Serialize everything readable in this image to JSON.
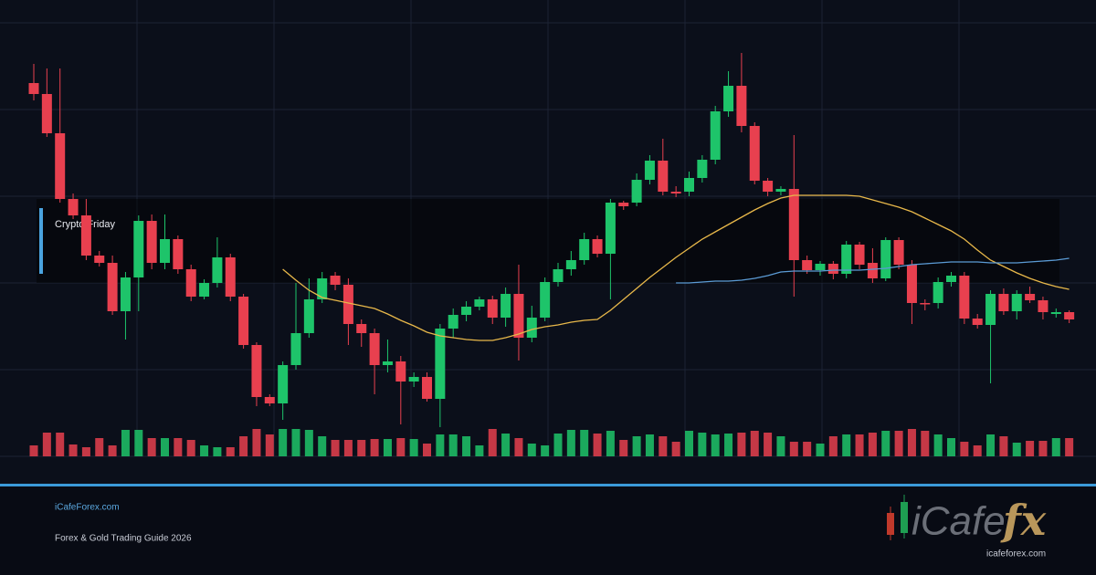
{
  "chart_data": {
    "type": "candlestick",
    "ylim": [
      0,
      475
    ],
    "up_color": "#1ec46a",
    "down_color": "#e8404f",
    "open": [
      409,
      397,
      354,
      282,
      264,
      220,
      212,
      159,
      196,
      258,
      212,
      238,
      205,
      175,
      190,
      218,
      175,
      122,
      65,
      58,
      100,
      135,
      172,
      198,
      188,
      145,
      135,
      100,
      104,
      82,
      87,
      63,
      140,
      155,
      164,
      172,
      152,
      178,
      130,
      152,
      191,
      205,
      215,
      238,
      222,
      278,
      278,
      303,
      324,
      290,
      290,
      305,
      325,
      378,
      406,
      362,
      302,
      290,
      293,
      215,
      204,
      211,
      200,
      232,
      212,
      195,
      237,
      210,
      168,
      168,
      191,
      198,
      151,
      144,
      178,
      159,
      178,
      171,
      156,
      158
    ],
    "high": [
      430,
      425,
      425,
      288,
      282,
      225,
      220,
      202,
      264,
      265,
      265,
      242,
      210,
      194,
      240,
      222,
      178,
      125,
      68,
      104,
      190,
      195,
      202,
      202,
      195,
      150,
      140,
      128,
      110,
      92,
      92,
      145,
      162,
      170,
      175,
      176,
      185,
      210,
      165,
      196,
      212,
      225,
      245,
      242,
      282,
      280,
      310,
      330,
      348,
      296,
      312,
      330,
      384,
      422,
      442,
      366,
      305,
      296,
      352,
      220,
      214,
      214,
      236,
      235,
      228,
      240,
      240,
      215,
      172,
      196,
      202,
      202,
      156,
      182,
      184,
      182,
      186,
      175,
      162,
      160
    ],
    "low": [
      390,
      350,
      278,
      260,
      215,
      208,
      155,
      128,
      159,
      205,
      205,
      200,
      170,
      172,
      185,
      170,
      118,
      55,
      55,
      40,
      95,
      130,
      168,
      182,
      122,
      120,
      68,
      92,
      35,
      76,
      60,
      32,
      130,
      148,
      160,
      145,
      142,
      105,
      125,
      148,
      186,
      198,
      210,
      218,
      172,
      270,
      274,
      298,
      286,
      284,
      285,
      300,
      320,
      372,
      355,
      298,
      285,
      286,
      175,
      200,
      198,
      194,
      195,
      205,
      190,
      192,
      205,
      145,
      160,
      162,
      186,
      145,
      140,
      80,
      155,
      150,
      168,
      150,
      152,
      146
    ],
    "close": [
      397,
      354,
      282,
      264,
      220,
      212,
      159,
      196,
      258,
      212,
      238,
      205,
      175,
      190,
      218,
      175,
      122,
      65,
      58,
      100,
      135,
      172,
      195,
      188,
      145,
      135,
      100,
      104,
      82,
      87,
      63,
      140,
      155,
      164,
      172,
      152,
      178,
      130,
      152,
      191,
      205,
      215,
      238,
      222,
      278,
      274,
      303,
      324,
      290,
      288,
      305,
      325,
      378,
      406,
      362,
      302,
      290,
      293,
      215,
      204,
      211,
      200,
      232,
      210,
      195,
      237,
      210,
      168,
      167,
      191,
      198,
      151,
      144,
      178,
      159,
      178,
      171,
      158,
      158,
      150
    ],
    "volume": [
      12,
      26,
      26,
      13,
      10,
      20,
      12,
      29,
      29,
      20,
      20,
      20,
      18,
      12,
      10,
      10,
      22,
      30,
      24,
      30,
      30,
      29,
      22,
      18,
      18,
      18,
      19,
      19,
      20,
      19,
      14,
      24,
      24,
      22,
      12,
      30,
      25,
      20,
      14,
      12,
      25,
      29,
      29,
      25,
      28,
      18,
      22,
      24,
      22,
      16,
      28,
      26,
      24,
      25,
      26,
      28,
      26,
      22,
      16,
      16,
      14,
      22,
      24,
      24,
      26,
      28,
      28,
      30,
      28,
      24,
      20,
      16,
      12,
      24,
      22,
      15,
      17,
      17,
      20,
      20
    ],
    "volume_lim": [
      0,
      35
    ],
    "series": [
      {
        "color": "#e8b84a",
        "values": [
          null,
          null,
          null,
          null,
          null,
          null,
          null,
          null,
          null,
          null,
          null,
          null,
          null,
          null,
          null,
          null,
          null,
          null,
          null,
          205,
          193,
          182,
          174,
          171,
          168,
          165,
          162,
          156,
          149,
          143,
          136,
          132,
          130,
          128,
          127,
          127,
          130,
          134,
          139,
          142,
          144,
          147,
          149,
          150,
          160,
          172,
          184,
          196,
          207,
          218,
          228,
          238,
          246,
          254,
          262,
          270,
          277,
          283,
          286,
          286,
          286,
          286,
          286,
          285,
          281,
          277,
          273,
          268,
          261,
          254,
          247,
          238,
          226,
          215,
          208,
          201,
          195,
          190,
          186,
          183
        ]
      },
      {
        "color": "#5b9bd5",
        "values": [
          null,
          null,
          null,
          null,
          null,
          null,
          null,
          null,
          null,
          null,
          null,
          null,
          null,
          null,
          null,
          null,
          null,
          null,
          null,
          null,
          null,
          null,
          null,
          null,
          null,
          null,
          null,
          null,
          null,
          null,
          null,
          null,
          null,
          null,
          null,
          null,
          null,
          null,
          null,
          null,
          null,
          null,
          null,
          null,
          null,
          null,
          null,
          null,
          null,
          190,
          190,
          191,
          192,
          192,
          193,
          195,
          198,
          202,
          203,
          203,
          203,
          204,
          204,
          204,
          205,
          206,
          208,
          210,
          211,
          212,
          213,
          213,
          213,
          212,
          212,
          212,
          213,
          214,
          215,
          217
        ]
      }
    ],
    "annotation": {
      "text": "Crypto Friday",
      "from": 190,
      "to": 282
    }
  },
  "footer": {
    "site": "iCafeForex.com",
    "tagline": "Forex & Gold Trading Guide 2026"
  },
  "logo": {
    "text1": "iCafe",
    "text2": "fx",
    "url": "icafeforex.com"
  }
}
